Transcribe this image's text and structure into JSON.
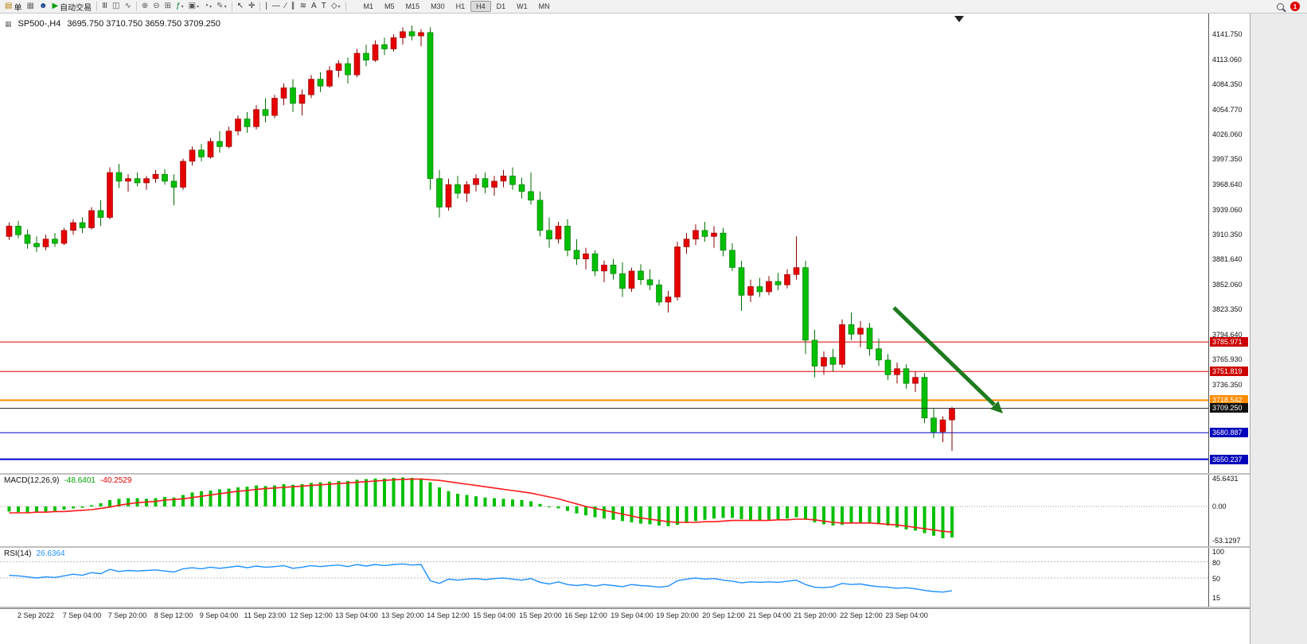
{
  "toolbar": {
    "items": [
      {
        "name": "new-order-button",
        "glyph": "▤",
        "glyph_color": "#b08000",
        "label": "单"
      },
      {
        "name": "chart-window-icon",
        "glyph": "▦",
        "glyph_color": "#707070"
      },
      {
        "name": "profile-icon",
        "glyph": "☻",
        "glyph_color": "#16418c"
      },
      {
        "name": "algo-trading-button",
        "glyph": "▶",
        "glyph_color": "#00a000",
        "label": "自动交易"
      },
      {
        "sep": true
      },
      {
        "name": "bar-chart-icon",
        "glyph": "Ⅲ",
        "glyph_color": "#555555"
      },
      {
        "name": "candlestick-chart-icon",
        "glyph": "◫",
        "glyph_color": "#555555"
      },
      {
        "name": "line-chart-icon",
        "glyph": "∿",
        "glyph_color": "#555555"
      },
      {
        "sep": true
      },
      {
        "name": "zoom-in-icon",
        "glyph": "⊕",
        "glyph_color": "#555555"
      },
      {
        "name": "zoom-out-icon",
        "glyph": "⊖",
        "glyph_color": "#555555"
      },
      {
        "name": "tile-windows-icon",
        "glyph": "⊞",
        "glyph_color": "#555555"
      },
      {
        "name": "indicators-icon",
        "glyph": "ƒ",
        "glyph_color": "#00772c",
        "dropdown": true
      },
      {
        "name": "templates-icon",
        "glyph": "▣",
        "glyph_color": "#555555",
        "dropdown": true
      },
      {
        "name": "period-icon",
        "glyph": "◔",
        "glyph_color": "#555555",
        "dropdown": true
      },
      {
        "name": "draw-icon",
        "glyph": "✎",
        "glyph_color": "#555555",
        "dropdown": true
      },
      {
        "sep": true
      },
      {
        "name": "cursor-icon",
        "glyph": "↖",
        "glyph_color": "#333333"
      },
      {
        "name": "crosshair-icon",
        "glyph": "✛",
        "glyph_color": "#333333"
      },
      {
        "sep": true
      },
      {
        "name": "vertical-line-icon",
        "glyph": "|",
        "glyph_color": "#333333"
      },
      {
        "name": "horizontal-line-icon",
        "glyph": "—",
        "glyph_color": "#333333"
      },
      {
        "name": "trendline-icon",
        "glyph": "∕",
        "glyph_color": "#333333"
      },
      {
        "name": "channel-icon",
        "glyph": "∥",
        "glyph_color": "#333333"
      },
      {
        "name": "fibonacci-icon",
        "glyph": "≋",
        "glyph_color": "#333333"
      },
      {
        "name": "text-icon",
        "glyph": "A",
        "glyph_color": "#333333"
      },
      {
        "name": "label-icon",
        "glyph": "T",
        "glyph_color": "#333333"
      },
      {
        "name": "shapes-icon",
        "glyph": "◇",
        "glyph_color": "#333333",
        "dropdown": true
      },
      {
        "sep": true
      }
    ],
    "timeframes": [
      "M1",
      "M5",
      "M15",
      "M30",
      "H1",
      "H4",
      "D1",
      "W1",
      "MN"
    ],
    "active_timeframe": "H4",
    "notification_count": "1"
  },
  "chart": {
    "header": {
      "symbol_period": "SP500-,H4",
      "ohlc": "3695.750 3710.750 3659.750 3709.250"
    },
    "price_axis_labels": [
      "4141.750",
      "4113.060",
      "4084.350",
      "4054.770",
      "4026.060",
      "3997.350",
      "3968.640",
      "3939.060",
      "3910.350",
      "3881.640",
      "3852.060",
      "3823.350",
      "3794.640",
      "3765.930",
      "3736.350"
    ],
    "price_lines": [
      {
        "price": 3785.971,
        "label": "3785.971",
        "color": "#dd0000",
        "tag_bg": "#cc0000"
      },
      {
        "price": 3751.819,
        "label": "3751.819",
        "color": "#dd0000",
        "tag_bg": "#cc0000"
      },
      {
        "price": 3718.542,
        "label": "3718.542",
        "color": "#ff8c00",
        "tag_bg": "#ff8c00",
        "width": 2
      },
      {
        "price": 3709.25,
        "label": "3709.250",
        "color": "#333333",
        "tag_bg": "#111111",
        "current": true
      },
      {
        "price": 3680.887,
        "label": "3680.887",
        "color": "#0000cc",
        "tag_bg": "#0000bb"
      },
      {
        "price": 3650.237,
        "label": "3650.237",
        "color": "#0000cc",
        "tag_bg": "#0000bb",
        "width": 2
      }
    ],
    "arrow_color": "#1e7a1e",
    "colors": {
      "up": "#e60000",
      "down": "#00bf00",
      "up_border": "#8b0000",
      "down_border": "#007000"
    }
  },
  "macd_panel": {
    "label": "MACD(12,26,9)",
    "main_value": "-48.6401",
    "signal_value": "-40.2529",
    "axis": [
      "45.6431",
      "0.00",
      "-53.1297"
    ],
    "histogram_color": "#00c000",
    "signal_color": "#ff1a1a"
  },
  "rsi_panel": {
    "label": "RSI(14)",
    "value": "26.6364",
    "axis": [
      "100",
      "80",
      "50",
      "15"
    ],
    "levels": [
      80,
      50
    ],
    "line_color": "#1e90ff"
  },
  "chart_data": {
    "type": "candlestick",
    "symbol": "SP500-",
    "period": "H4",
    "time_labels": [
      "2 Sep 2022",
      "7 Sep 04:00",
      "7 Sep 20:00",
      "8 Sep 12:00",
      "9 Sep 04:00",
      "11 Sep 23:00",
      "12 Sep 12:00",
      "13 Sep 04:00",
      "13 Sep 20:00",
      "14 Sep 12:00",
      "15 Sep 04:00",
      "15 Sep 20:00",
      "16 Sep 12:00",
      "19 Sep 04:00",
      "19 Sep 20:00",
      "20 Sep 12:00",
      "21 Sep 04:00",
      "21 Sep 20:00",
      "22 Sep 12:00",
      "23 Sep 04:00"
    ],
    "candles": [
      [
        3908,
        3924,
        3904,
        3920
      ],
      [
        3920,
        3926,
        3906,
        3910
      ],
      [
        3910,
        3916,
        3894,
        3900
      ],
      [
        3900,
        3908,
        3890,
        3896
      ],
      [
        3896,
        3910,
        3892,
        3905
      ],
      [
        3905,
        3912,
        3896,
        3900
      ],
      [
        3900,
        3918,
        3898,
        3915
      ],
      [
        3915,
        3928,
        3910,
        3924
      ],
      [
        3924,
        3930,
        3912,
        3918
      ],
      [
        3918,
        3942,
        3916,
        3938
      ],
      [
        3938,
        3950,
        3920,
        3930
      ],
      [
        3930,
        3988,
        3928,
        3982
      ],
      [
        3982,
        3992,
        3964,
        3972
      ],
      [
        3972,
        3980,
        3960,
        3975
      ],
      [
        3975,
        3982,
        3966,
        3970
      ],
      [
        3970,
        3978,
        3962,
        3975
      ],
      [
        3975,
        3985,
        3970,
        3980
      ],
      [
        3980,
        3986,
        3968,
        3972
      ],
      [
        3972,
        3980,
        3944,
        3965
      ],
      [
        3965,
        3998,
        3962,
        3995
      ],
      [
        3995,
        4012,
        3990,
        4008
      ],
      [
        4008,
        4015,
        3995,
        4000
      ],
      [
        4000,
        4022,
        3998,
        4018
      ],
      [
        4018,
        4030,
        4005,
        4012
      ],
      [
        4012,
        4035,
        4010,
        4030
      ],
      [
        4030,
        4048,
        4025,
        4044
      ],
      [
        4044,
        4052,
        4028,
        4035
      ],
      [
        4035,
        4060,
        4032,
        4055
      ],
      [
        4055,
        4068,
        4040,
        4048
      ],
      [
        4048,
        4072,
        4045,
        4068
      ],
      [
        4068,
        4085,
        4060,
        4080
      ],
      [
        4080,
        4090,
        4052,
        4062
      ],
      [
        4062,
        4078,
        4048,
        4072
      ],
      [
        4072,
        4095,
        4068,
        4090
      ],
      [
        4090,
        4098,
        4075,
        4082
      ],
      [
        4082,
        4105,
        4080,
        4100
      ],
      [
        4100,
        4112,
        4092,
        4108
      ],
      [
        4108,
        4115,
        4085,
        4095
      ],
      [
        4095,
        4125,
        4092,
        4120
      ],
      [
        4120,
        4130,
        4105,
        4112
      ],
      [
        4112,
        4135,
        4110,
        4130
      ],
      [
        4130,
        4138,
        4118,
        4125
      ],
      [
        4125,
        4142,
        4122,
        4138
      ],
      [
        4138,
        4150,
        4130,
        4145
      ],
      [
        4145,
        4152,
        4135,
        4140
      ],
      [
        4140,
        4148,
        4128,
        4144
      ],
      [
        4144,
        4150,
        3962,
        3975
      ],
      [
        3975,
        3985,
        3930,
        3942
      ],
      [
        3942,
        3975,
        3938,
        3968
      ],
      [
        3968,
        3978,
        3952,
        3958
      ],
      [
        3958,
        3972,
        3948,
        3968
      ],
      [
        3968,
        3980,
        3960,
        3975
      ],
      [
        3975,
        3982,
        3958,
        3965
      ],
      [
        3965,
        3978,
        3955,
        3972
      ],
      [
        3972,
        3985,
        3965,
        3978
      ],
      [
        3978,
        3988,
        3962,
        3968
      ],
      [
        3968,
        3976,
        3952,
        3960
      ],
      [
        3960,
        3982,
        3945,
        3950
      ],
      [
        3950,
        3960,
        3908,
        3915
      ],
      [
        3915,
        3930,
        3895,
        3905
      ],
      [
        3905,
        3925,
        3900,
        3920
      ],
      [
        3920,
        3928,
        3885,
        3892
      ],
      [
        3892,
        3905,
        3875,
        3882
      ],
      [
        3882,
        3895,
        3870,
        3888
      ],
      [
        3888,
        3892,
        3862,
        3868
      ],
      [
        3868,
        3880,
        3855,
        3875
      ],
      [
        3875,
        3882,
        3858,
        3865
      ],
      [
        3865,
        3878,
        3838,
        3848
      ],
      [
        3848,
        3872,
        3844,
        3868
      ],
      [
        3868,
        3876,
        3852,
        3858
      ],
      [
        3858,
        3870,
        3846,
        3852
      ],
      [
        3852,
        3858,
        3828,
        3832
      ],
      [
        3832,
        3845,
        3820,
        3838
      ],
      [
        3838,
        3902,
        3834,
        3896
      ],
      [
        3896,
        3912,
        3888,
        3905
      ],
      [
        3905,
        3922,
        3898,
        3915
      ],
      [
        3915,
        3925,
        3902,
        3908
      ],
      [
        3908,
        3920,
        3895,
        3912
      ],
      [
        3912,
        3918,
        3885,
        3892
      ],
      [
        3892,
        3900,
        3868,
        3872
      ],
      [
        3872,
        3880,
        3822,
        3840
      ],
      [
        3840,
        3858,
        3832,
        3850
      ],
      [
        3850,
        3860,
        3838,
        3844
      ],
      [
        3844,
        3862,
        3840,
        3856
      ],
      [
        3856,
        3866,
        3846,
        3852
      ],
      [
        3852,
        3870,
        3848,
        3864
      ],
      [
        3864,
        3908,
        3858,
        3872
      ],
      [
        3872,
        3880,
        3772,
        3788
      ],
      [
        3788,
        3800,
        3745,
        3758
      ],
      [
        3758,
        3775,
        3748,
        3768
      ],
      [
        3768,
        3778,
        3752,
        3760
      ],
      [
        3760,
        3812,
        3756,
        3806
      ],
      [
        3806,
        3820,
        3788,
        3795
      ],
      [
        3795,
        3810,
        3780,
        3802
      ],
      [
        3802,
        3808,
        3770,
        3778
      ],
      [
        3778,
        3790,
        3758,
        3765
      ],
      [
        3765,
        3772,
        3742,
        3748
      ],
      [
        3748,
        3762,
        3738,
        3755
      ],
      [
        3755,
        3760,
        3732,
        3738
      ],
      [
        3738,
        3752,
        3728,
        3745
      ],
      [
        3745,
        3750,
        3692,
        3698
      ],
      [
        3698,
        3710,
        3675,
        3682
      ],
      [
        3682,
        3700,
        3670,
        3695.75
      ],
      [
        3695.75,
        3710.75,
        3659.75,
        3709.25
      ]
    ],
    "macd": {
      "main": [
        -8,
        -9,
        -10,
        -9,
        -8,
        -7,
        -5,
        -3,
        -2,
        2,
        5,
        10,
        12,
        13,
        13,
        12,
        13,
        15,
        14,
        18,
        22,
        24,
        25,
        27,
        28,
        30,
        31,
        33,
        32,
        33,
        35,
        34,
        35,
        37,
        38,
        39,
        40,
        40,
        42,
        43,
        44,
        44,
        45,
        45.6,
        45,
        44,
        38,
        30,
        24,
        20,
        18,
        16,
        14,
        13,
        12,
        11,
        10,
        8,
        4,
        0,
        -3,
        -7,
        -11,
        -14,
        -17,
        -19,
        -21,
        -23,
        -25,
        -27,
        -28,
        -30,
        -31,
        -29,
        -26,
        -23,
        -21,
        -19,
        -18,
        -18,
        -20,
        -21,
        -22,
        -21,
        -20,
        -19,
        -17,
        -20,
        -25,
        -28,
        -30,
        -29,
        -27,
        -26,
        -26,
        -28,
        -30,
        -33,
        -36,
        -38,
        -42,
        -46,
        -50,
        -48.64
      ],
      "signal": [
        -10,
        -10,
        -10,
        -9,
        -9,
        -8,
        -8,
        -7,
        -6,
        -5,
        -3,
        -1,
        2,
        4,
        6,
        7,
        8,
        10,
        11,
        12,
        14,
        16,
        18,
        20,
        22,
        24,
        25,
        27,
        28,
        29,
        30,
        31,
        32,
        33,
        34,
        35,
        36,
        37,
        38,
        39,
        40,
        41,
        42,
        42.5,
        43,
        43,
        42,
        41,
        39,
        37,
        35,
        33,
        31,
        29,
        27,
        25,
        23,
        21,
        18,
        15,
        12,
        8,
        4,
        0,
        -3,
        -6,
        -9,
        -12,
        -15,
        -18,
        -20,
        -22,
        -24,
        -25,
        -25,
        -25,
        -24,
        -24,
        -23,
        -22,
        -22,
        -22,
        -22,
        -22,
        -21,
        -21,
        -20,
        -20,
        -21,
        -23,
        -25,
        -26,
        -26,
        -26,
        -26,
        -27,
        -28,
        -29,
        -31,
        -33,
        -35,
        -37,
        -39,
        -40.25
      ]
    },
    "rsi": [
      55,
      54,
      52,
      50,
      52,
      51,
      54,
      57,
      55,
      60,
      58,
      66,
      62,
      64,
      63,
      64,
      65,
      63,
      61,
      67,
      69,
      67,
      70,
      68,
      70,
      72,
      69,
      72,
      70,
      71,
      73,
      68,
      70,
      73,
      71,
      73,
      74,
      71,
      75,
      72,
      75,
      73,
      75,
      76,
      74,
      75,
      45,
      40,
      48,
      46,
      48,
      49,
      47,
      49,
      50,
      48,
      46,
      49,
      42,
      39,
      43,
      38,
      36,
      38,
      35,
      38,
      36,
      34,
      38,
      36,
      35,
      33,
      35,
      45,
      48,
      50,
      48,
      49,
      46,
      44,
      41,
      43,
      42,
      43,
      42,
      44,
      46,
      38,
      33,
      32,
      34,
      40,
      38,
      39,
      36,
      34,
      33,
      31,
      32,
      30,
      27,
      25,
      24,
      26.64
    ]
  }
}
